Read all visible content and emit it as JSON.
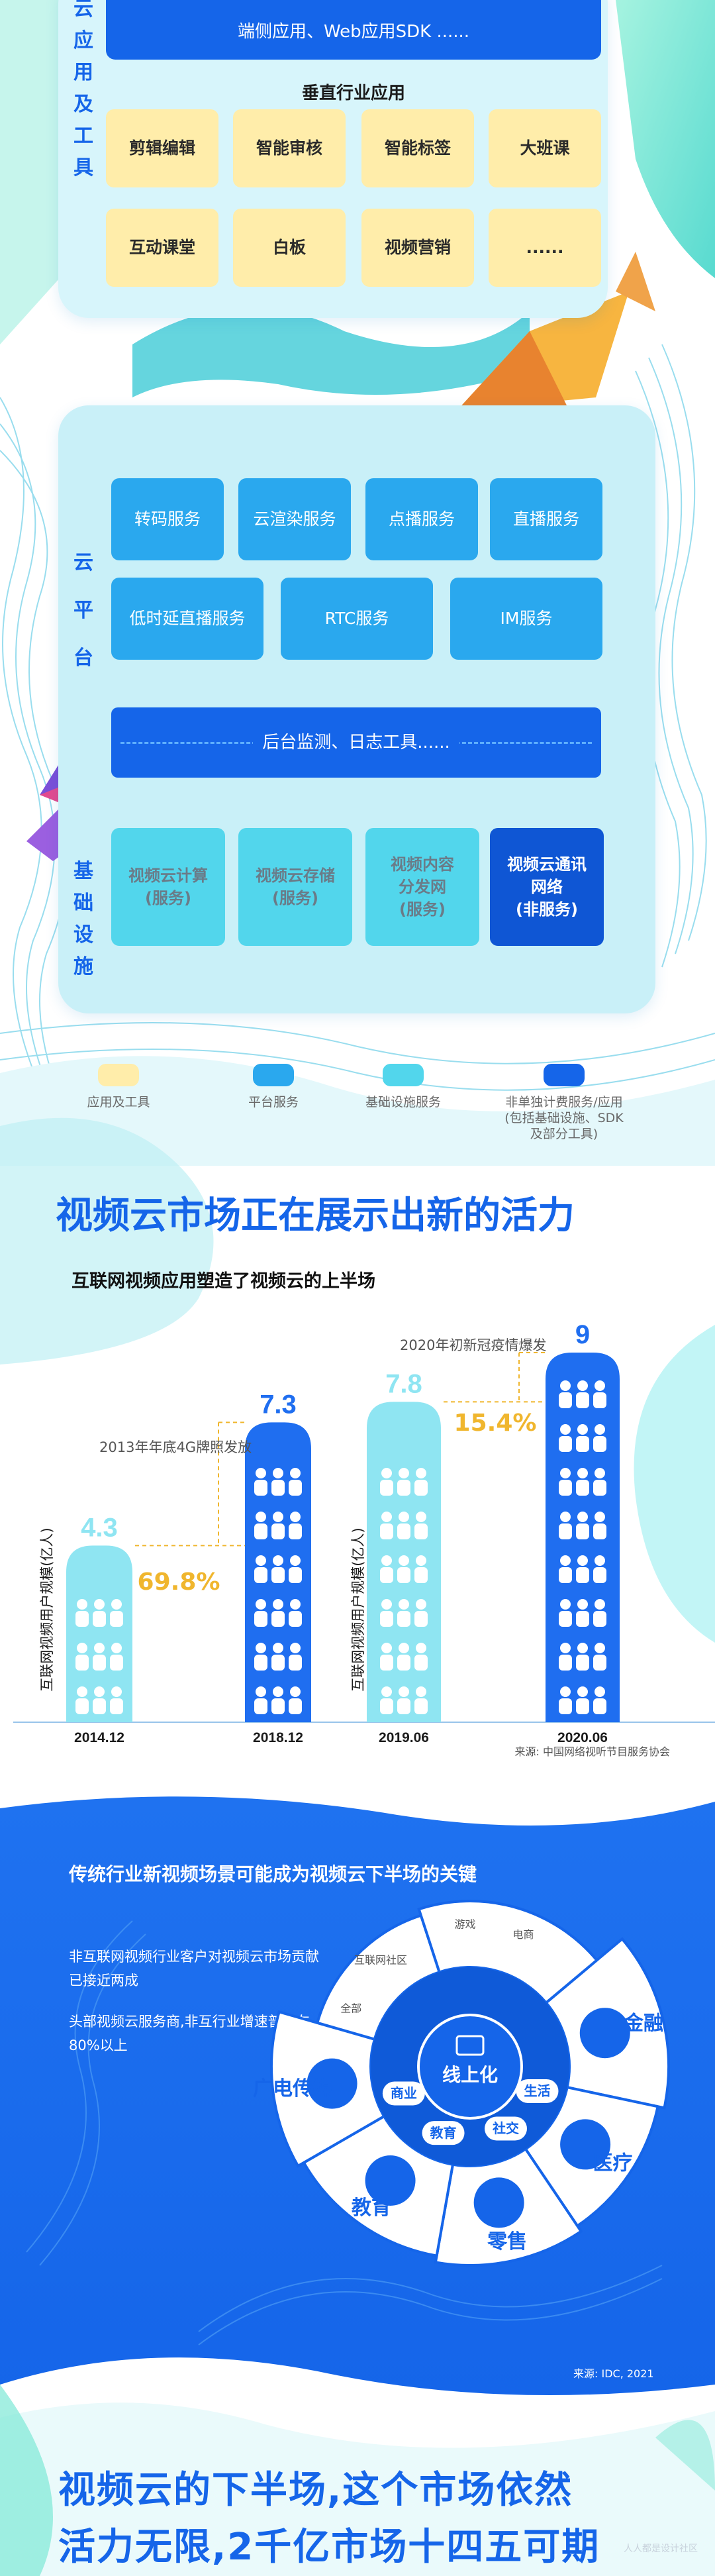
{
  "colors": {
    "blue": "#1565e9",
    "sky": "#2aa8ee",
    "cyan": "#52d6ec",
    "navy": "#0f56d4",
    "yellow": "#ffedaa",
    "gold": "#f0b62e"
  },
  "apps_panel": {
    "side_label": [
      "云",
      "应",
      "用",
      "及",
      "工",
      "具"
    ],
    "sdk_bar": "端侧应用、Web应用SDK ......",
    "vertical_title": "垂直行业应用",
    "vertical_items": [
      "剪辑编辑",
      "智能审核",
      "智能标签",
      "大班课",
      "互动课堂",
      "白板",
      "视频营销",
      "......"
    ]
  },
  "cloud_panel": {
    "platform_label": [
      "云",
      "平",
      "台"
    ],
    "platform_row1": [
      "转码服务",
      "云渲染服务",
      "点播服务",
      "直播服务"
    ],
    "platform_row2": [
      "低时延直播服务",
      "RTC服务",
      "IM服务"
    ],
    "monitor_bar": "后台监测、日志工具......",
    "infra_label": [
      "基",
      "础",
      "设",
      "施"
    ],
    "infra_items": [
      {
        "line1": "视频云计算",
        "line2": "(服务)",
        "line3": ""
      },
      {
        "line1": "视频云存储",
        "line2": "(服务)",
        "line3": ""
      },
      {
        "line1": "视频内容",
        "line2": "分发网",
        "line3": "(服务)"
      },
      {
        "line1": "视频云通讯",
        "line2": "网络",
        "line3": "(非服务)"
      }
    ]
  },
  "legend": [
    {
      "label": "应用及工具",
      "label2": "",
      "label3": "",
      "color": "#ffedaa"
    },
    {
      "label": "平台服务",
      "label2": "",
      "label3": "",
      "color": "#2aa8ee"
    },
    {
      "label": "基础设施服务",
      "label2": "",
      "label3": "",
      "color": "#52d6ec"
    },
    {
      "label": "非单独计费服务/应用",
      "label2": "(包括基础设施、SDK",
      "label3": "及部分工具)",
      "color": "#1565e9"
    }
  ],
  "headline": "视频云市场正在展示出新的活力",
  "subhead": "互联网视频应用塑造了视频云的上半场",
  "chart_data": {
    "type": "bar",
    "categories": [
      "2014.12",
      "2018.12",
      "2019.06",
      "2020.06"
    ],
    "values": [
      4.3,
      7.3,
      7.8,
      9
    ],
    "ylabel": "互联网视频用户规模(亿人)",
    "growth_labels": [
      "69.8%",
      "15.4%"
    ],
    "annotations": [
      "2013年年底4G牌照发放",
      "2020年初新冠疫情爆发"
    ],
    "source": "来源: 中国网络视听节目服务协会"
  },
  "band": {
    "title": "传统行业新视频场景可能成为视频云下半场的关键",
    "text1": "非互联网视频行业客户对视频云市场贡献已接近两成",
    "text2": "头部视频云服务商,非互行业增速普遍在80%以上",
    "center_label": "线上化",
    "inner_ring": [
      "生活",
      "教育",
      "商业",
      "社交"
    ],
    "outer_small": [
      "全部",
      "互联网社区",
      "游戏",
      "电商"
    ],
    "outer_big": [
      "金融",
      "医疗",
      "零售",
      "教育",
      "广电传媒"
    ],
    "source": "来源: IDC, 2021"
  },
  "final_heading": {
    "line1": "视频云的下半场,这个市场依然",
    "line2": "活力无限,2千亿市场十四五可期"
  },
  "watermark": "人人都是设计社区"
}
